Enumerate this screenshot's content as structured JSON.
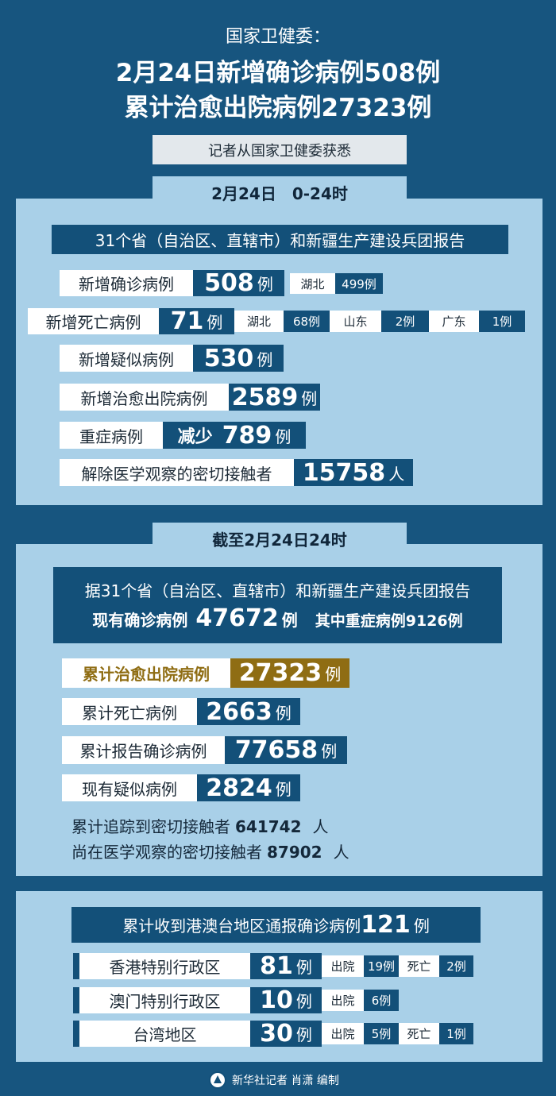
{
  "header": {
    "source": "国家卫健委：",
    "headline_1": "2月24日新增确诊病例508例",
    "headline_2": "累计治愈出院病例27323例",
    "note": "记者从国家卫健委获悉"
  },
  "daily": {
    "tab": "2月24日　0-24时",
    "banner": "31个省（自治区、直辖市）和新疆生产建设兵团报告",
    "rows": [
      {
        "label": "新增确诊病例",
        "value": "508",
        "unit": "例",
        "details": [
          {
            "label": "湖北",
            "value": "499例"
          }
        ]
      },
      {
        "label": "新增死亡病例",
        "value": "71",
        "unit": "例",
        "details": [
          {
            "label": "湖北",
            "value": "68例"
          },
          {
            "label": "山东",
            "value": "2例"
          },
          {
            "label": "广东",
            "value": "1例"
          }
        ]
      },
      {
        "label": "新增疑似病例",
        "value": "530",
        "unit": "例"
      },
      {
        "label": "新增治愈出院病例",
        "value": "2589",
        "unit": "例"
      },
      {
        "label": "重症病例",
        "prefix": "减少",
        "value": "789",
        "unit": "例"
      },
      {
        "label": "解除医学观察的密切接触者",
        "value": "15758",
        "unit": "人"
      }
    ]
  },
  "cumulative": {
    "tab": "截至2月24日24时",
    "intro": "据31个省（自治区、直辖市）和新疆生产建设兵团报告",
    "current_label": "现有确诊病例",
    "current_value": "47672",
    "current_unit": "例",
    "severe": "其中重症病例9126例",
    "rows": [
      {
        "label": "累计治愈出院病例",
        "value": "27323",
        "unit": "例"
      },
      {
        "label": "累计死亡病例",
        "value": "2663",
        "unit": "例"
      },
      {
        "label": "累计报告确诊病例",
        "value": "77658",
        "unit": "例"
      },
      {
        "label": "现有疑似病例",
        "value": "2824",
        "unit": "例"
      }
    ],
    "contacts": [
      {
        "label": "累计追踪到密切接触者",
        "value": "641742",
        "unit": "人"
      },
      {
        "label": "尚在医学观察的密切接触者",
        "value": "87902",
        "unit": "人"
      }
    ]
  },
  "regions": {
    "banner_label": "累计收到港澳台地区通报确诊病例",
    "banner_value": "121",
    "banner_unit": "例",
    "rows": [
      {
        "name": "香港特别行政区",
        "value": "81",
        "unit": "例",
        "details": [
          {
            "label": "出院",
            "value": "19例"
          },
          {
            "label": "死亡",
            "value": "2例"
          }
        ]
      },
      {
        "name": "澳门特别行政区",
        "value": "10",
        "unit": "例",
        "details": [
          {
            "label": "出院",
            "value": "6例"
          }
        ]
      },
      {
        "name": "台湾地区",
        "value": "30",
        "unit": "例",
        "details": [
          {
            "label": "出院",
            "value": "5例"
          },
          {
            "label": "死亡",
            "value": "1例"
          }
        ]
      }
    ]
  },
  "footer": {
    "credit": "新华社记者 肖潇 编制"
  }
}
